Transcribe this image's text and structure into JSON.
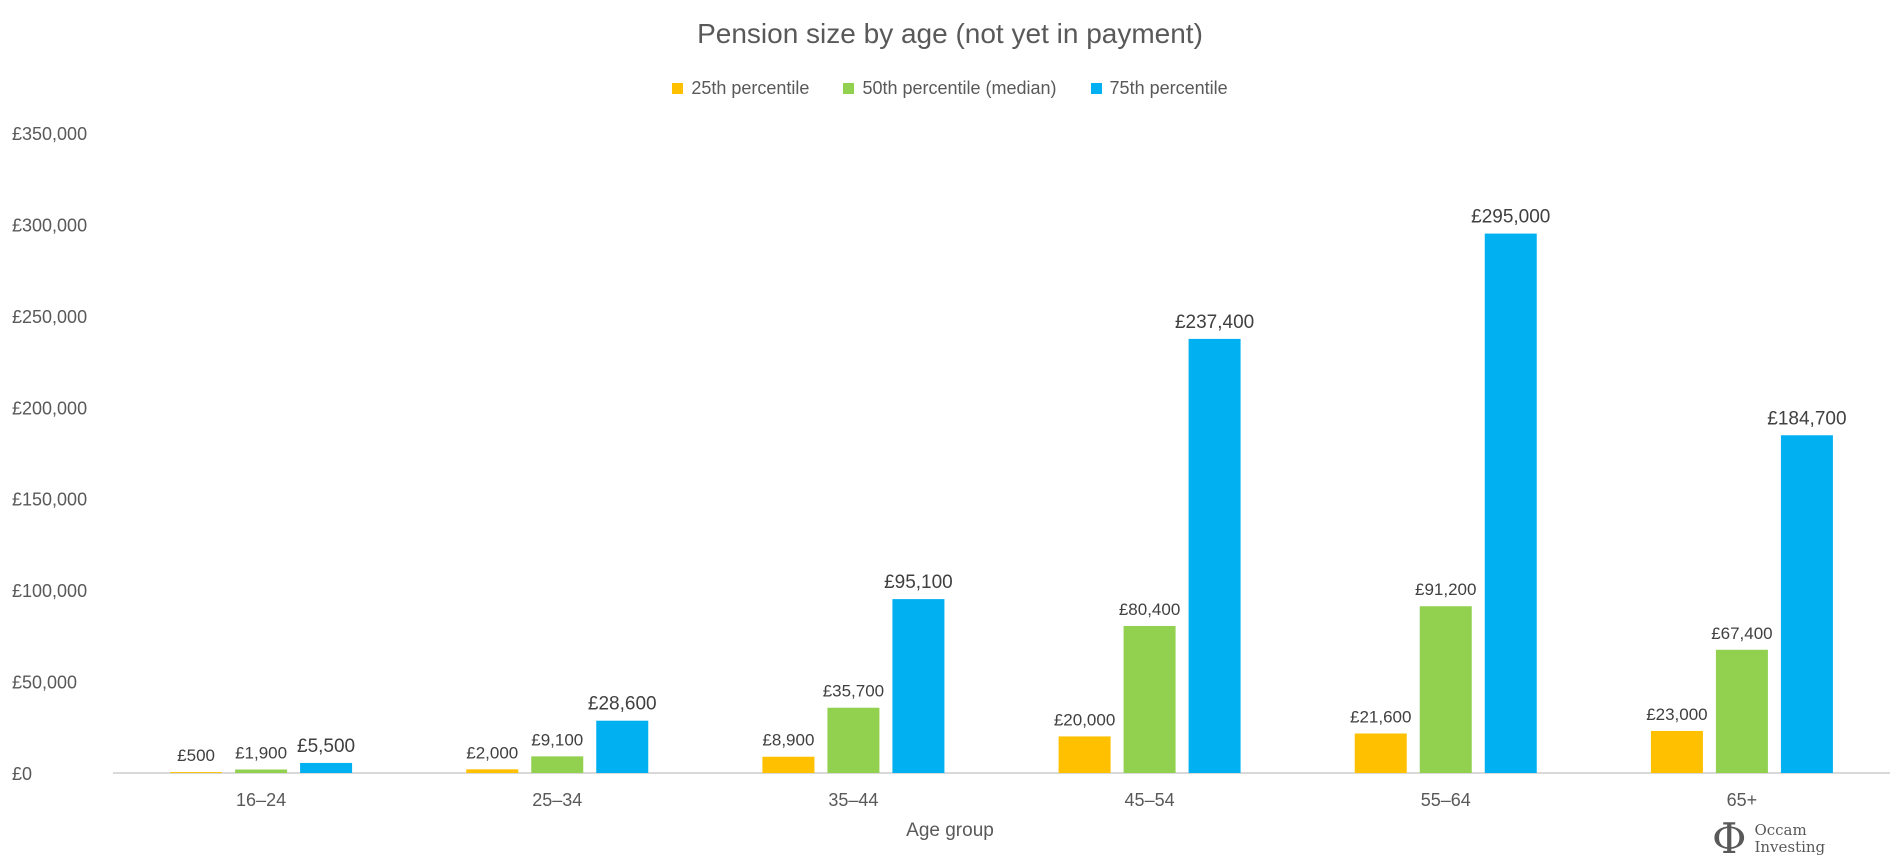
{
  "chart_data": {
    "type": "bar",
    "title": "Pension size by age (not yet in payment)",
    "xlabel": "Age group",
    "ylabel": "",
    "categories": [
      "16–24",
      "25–34",
      "35–44",
      "45–54",
      "55–64",
      "65+"
    ],
    "series": [
      {
        "name": "25th percentile",
        "color": "#FFC000",
        "values": [
          500,
          2000,
          8900,
          20000,
          21600,
          23000
        ],
        "labels": [
          "£500",
          "£2,000",
          "£8,900",
          "£20,000",
          "£21,600",
          "£23,000"
        ]
      },
      {
        "name": "50th percentile (median)",
        "color": "#92D050",
        "values": [
          1900,
          9100,
          35700,
          80400,
          91200,
          67400
        ],
        "labels": [
          "£1,900",
          "£9,100",
          "£35,700",
          "£80,400",
          "£91,200",
          "£67,400"
        ]
      },
      {
        "name": "75th percentile",
        "color": "#00B0F0",
        "values": [
          5500,
          28600,
          95100,
          237400,
          295000,
          184700
        ],
        "labels": [
          "£5,500",
          "£28,600",
          "£95,100",
          "£237,400",
          "£295,000",
          "£184,700"
        ]
      }
    ],
    "ylim": [
      0,
      350000
    ],
    "y_ticks": [
      0,
      50000,
      100000,
      150000,
      200000,
      250000,
      300000,
      350000
    ],
    "y_tick_labels": [
      "£0",
      "£50,000",
      "£100,000",
      "£150,000",
      "£200,000",
      "£250,000",
      "£300,000",
      "£350,000"
    ],
    "grid": false,
    "legend_position": "top"
  },
  "logo": {
    "symbol": "Φ",
    "line1": "Occam",
    "line2": "Investing"
  }
}
